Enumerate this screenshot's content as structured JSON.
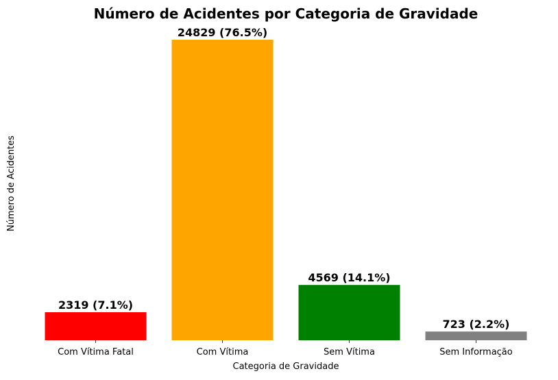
{
  "chart_data": {
    "type": "bar",
    "title": "Número de Acidentes por Categoria de Gravidade",
    "xlabel": "Categoria de Gravidade",
    "ylabel": "Número de Acidentes",
    "categories": [
      "Com Vítima Fatal",
      "Com Vítima",
      "Sem Vítima",
      "Sem Informação"
    ],
    "values": [
      2319,
      24829,
      4569,
      723
    ],
    "data_labels": [
      "2319 (7.1%)",
      "24829 (76.5%)",
      "4569 (14.1%)",
      "723 (2.2%)"
    ],
    "colors": [
      "#ff0000",
      "#ffa500",
      "#008000",
      "#808080"
    ],
    "ylim": [
      0,
      24829
    ],
    "grid": false,
    "legend": "none",
    "y_ticks_visible": false
  }
}
